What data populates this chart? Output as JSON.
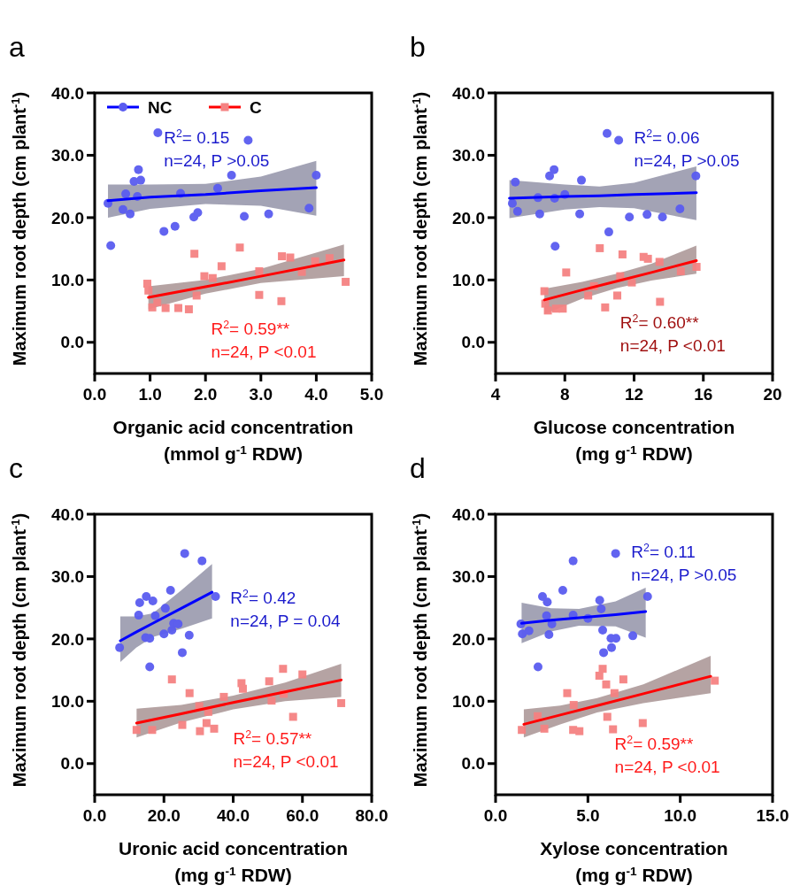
{
  "chart_data": [
    {
      "type": "scatter",
      "title": "a",
      "xlabel": "Organic acid concentration\n(mmol g$^{-1}$ RDW)",
      "ylabel": "Maximum root depth (cm plant$^{-1}$)",
      "xlim": [
        0,
        5
      ],
      "xticks": [
        {
          "value": 0,
          "label": "0.0"
        },
        {
          "value": 1,
          "label": "1.0"
        },
        {
          "value": 2,
          "label": "2.0"
        },
        {
          "value": 3,
          "label": "3.0"
        },
        {
          "value": 4,
          "label": "4.0"
        },
        {
          "value": 5,
          "label": "5.0"
        }
      ],
      "ylim": [
        -5,
        40
      ],
      "yticks": [
        {
          "value": 0,
          "label": "0.0"
        },
        {
          "value": 10,
          "label": "10.0"
        },
        {
          "value": 20,
          "label": "20.0"
        },
        {
          "value": 30,
          "label": "30.0"
        },
        {
          "value": 40,
          "label": "40.0"
        }
      ],
      "legend": "top left",
      "annotations": [
        "R$^{2}$= 0.15",
        "n=24, P >0.05",
        "R$^{2}$= 0.59**",
        "n=24, P <0.01"
      ],
      "series": [
        {
          "name": "NC",
          "marker": "circle",
          "color": "#5a5cf0",
          "x": [
            0.24,
            0.29,
            0.56,
            0.51,
            0.64,
            0.71,
            0.79,
            0.83,
            0.77,
            1.14,
            1.25,
            1.45,
            1.55,
            1.79,
            1.86,
            2.22,
            2.47,
            2.7,
            2.77,
            3.14,
            3.87,
            4.0
          ],
          "values": [
            22.3,
            15.5,
            23.8,
            21.3,
            20.6,
            25.8,
            27.7,
            26.0,
            23.4,
            33.6,
            17.8,
            18.6,
            23.9,
            20.1,
            20.8,
            24.7,
            26.8,
            20.2,
            32.4,
            20.6,
            21.5,
            26.8
          ]
        },
        {
          "name": "C",
          "marker": "square",
          "color": "#f58282",
          "x": [
            0.95,
            0.97,
            1.04,
            1.13,
            1.28,
            1.51,
            1.7,
            1.8,
            1.84,
            1.98,
            2.13,
            2.29,
            2.62,
            2.97,
            2.97,
            3.37,
            3.38,
            3.53,
            3.74,
            3.98,
            4.24,
            4.53
          ],
          "values": [
            9.4,
            8.3,
            5.6,
            6.4,
            5.5,
            5.5,
            5.3,
            14.2,
            7.5,
            10.6,
            10.3,
            12.2,
            15.2,
            11.4,
            7.6,
            6.6,
            13.8,
            13.6,
            11.3,
            13.0,
            13.5,
            9.7
          ]
        },
        {
          "type": "line",
          "color": "#0000ff",
          "x": [
            0.24,
            1,
            2,
            3,
            4
          ],
          "values": [
            22.7,
            23.3,
            23.7,
            24.3,
            24.8
          ],
          "lower": [
            20.0,
            21.4,
            22.2,
            21.9,
            20.3
          ],
          "upper": [
            25.3,
            25.3,
            25.4,
            26.6,
            29.1
          ]
        },
        {
          "type": "line",
          "color": "#ff0000",
          "x": [
            0.97,
            2,
            3,
            4.5
          ],
          "values": [
            7.2,
            8.9,
            10.6,
            13.2
          ],
          "lower": [
            5.3,
            7.8,
            9.5,
            10.6
          ],
          "upper": [
            9.0,
            10.0,
            11.8,
            15.7
          ]
        }
      ]
    },
    {
      "type": "scatter",
      "title": "b",
      "xlabel": "Glucose concentration\n(mg g$^{-1}$ RDW)",
      "ylabel": "Maximum root depth (cm plant$^{-1}$)",
      "xlim": [
        4,
        20
      ],
      "xticks": [
        4,
        8,
        12,
        16,
        20
      ],
      "ylim": [
        -5,
        40
      ],
      "yticks": [
        {
          "value": 0,
          "label": "0.0"
        },
        {
          "value": 10,
          "label": "10.0"
        },
        {
          "value": 20,
          "label": "20.0"
        },
        {
          "value": 30,
          "label": "30.0"
        },
        {
          "value": 40,
          "label": "40.0"
        }
      ],
      "annotations": [
        "R$^{2}$= 0.06",
        "n=24, P >0.05",
        "R$^{2}$= 0.60**",
        "n=24, P <0.01"
      ],
      "series": [
        {
          "marker": "circle",
          "color": "#5a5cf0",
          "x": [
            4.97,
            5.14,
            5.27,
            6.45,
            6.55,
            7.12,
            7.38,
            7.44,
            7.41,
            8.0,
            8.86,
            8.96,
            10.44,
            10.54,
            11.11,
            11.73,
            12.75,
            13.64,
            14.65,
            15.57
          ],
          "values": [
            22.3,
            25.7,
            21.0,
            23.2,
            20.6,
            26.7,
            27.7,
            15.4,
            23.1,
            23.7,
            20.6,
            26.0,
            33.5,
            17.7,
            32.4,
            20.1,
            20.5,
            20.1,
            21.4,
            26.7
          ]
        },
        {
          "marker": "square",
          "color": "#f58282",
          "x": [
            6.82,
            6.87,
            7.02,
            7.49,
            7.88,
            8.08,
            9.35,
            9.68,
            10.02,
            10.33,
            11.03,
            11.2,
            11.33,
            11.87,
            12.55,
            12.8,
            13.47,
            13.5,
            14.7,
            15.61
          ],
          "values": [
            8.2,
            6.2,
            5.1,
            5.4,
            5.4,
            11.2,
            7.5,
            9.0,
            15.1,
            5.6,
            7.5,
            10.6,
            14.1,
            9.6,
            13.7,
            13.4,
            12.9,
            6.5,
            11.4,
            12.1
          ]
        },
        {
          "type": "line",
          "color": "#0000ff",
          "x": [
            4.8,
            8,
            10,
            12,
            15.6
          ],
          "values": [
            23.1,
            23.4,
            23.5,
            23.7,
            24.0
          ],
          "lower": [
            19.9,
            21.3,
            21.7,
            21.5,
            19.6
          ],
          "upper": [
            26.0,
            25.3,
            25.0,
            25.6,
            28.2
          ]
        },
        {
          "type": "line",
          "color": "#ff0000",
          "x": [
            6.82,
            9,
            11,
            13,
            15.6
          ],
          "values": [
            6.8,
            8.4,
            9.8,
            11.2,
            13.1
          ],
          "lower": [
            4.5,
            7.0,
            8.7,
            9.9,
            11.0
          ],
          "upper": [
            8.6,
            9.7,
            11.0,
            12.6,
            15.5
          ]
        }
      ]
    },
    {
      "type": "scatter",
      "title": "c",
      "xlabel": "Uronic acid concentration\n(mg g$^{-1}$ RDW)",
      "ylabel": "Maximum root depth (cm plant$^{-1}$)",
      "xlim": [
        0,
        80
      ],
      "xticks": [
        {
          "value": 0,
          "label": "0.0"
        },
        {
          "value": 20,
          "label": "20.0"
        },
        {
          "value": 40,
          "label": "40.0"
        },
        {
          "value": 60,
          "label": "60.0"
        },
        {
          "value": 80,
          "label": "80.0"
        }
      ],
      "ylim": [
        -5,
        40
      ],
      "yticks": [
        {
          "value": 0,
          "label": "0.0"
        },
        {
          "value": 10,
          "label": "10.0"
        },
        {
          "value": 20,
          "label": "20.0"
        },
        {
          "value": 30,
          "label": "30.0"
        },
        {
          "value": 40,
          "label": "40.0"
        }
      ],
      "annotations": [
        "R$^{2}$= 0.42",
        "n=24, P = 0.04",
        "R$^{2}$= 0.57**",
        "n=24, P <0.01"
      ],
      "series": [
        {
          "marker": "circle",
          "color": "#5a5cf0",
          "x": [
            7.2,
            12.7,
            13.0,
            14.9,
            16.8,
            17.5,
            14.7,
            15.9,
            15.9,
            20.4,
            20.0,
            21.9,
            22.3,
            22.8,
            24.1,
            25.3,
            26.0,
            27.3,
            31.0,
            34.9
          ],
          "values": [
            18.6,
            23.8,
            25.8,
            26.8,
            26.1,
            23.7,
            20.2,
            20.1,
            15.5,
            24.9,
            20.8,
            27.8,
            21.4,
            22.5,
            22.4,
            17.8,
            33.7,
            20.6,
            32.5,
            26.8
          ]
        },
        {
          "marker": "square",
          "color": "#f58282",
          "x": [
            12.1,
            16.6,
            22.3,
            25.3,
            27.4,
            30.2,
            32.3,
            30.4,
            32.8,
            34.5,
            37.3,
            42.4,
            42.8,
            50.4,
            51.1,
            54.4,
            54.6,
            57.3,
            60.0,
            71.2
          ],
          "values": [
            5.4,
            5.4,
            13.5,
            6.2,
            11.3,
            9.2,
            6.5,
            5.2,
            8.3,
            5.6,
            10.7,
            12.9,
            12.0,
            13.2,
            10.1,
            15.2,
            11.2,
            7.5,
            14.3,
            9.7
          ]
        },
        {
          "type": "line",
          "color": "#0000ff",
          "x": [
            7.4,
            12,
            16.8,
            25,
            33.9
          ],
          "values": [
            19.7,
            21.1,
            22.5,
            24.9,
            27.5
          ],
          "lower": [
            16.3,
            18.6,
            20.3,
            21.6,
            23.3
          ],
          "upper": [
            23.6,
            23.6,
            24.1,
            27.8,
            32.0
          ]
        },
        {
          "type": "line",
          "color": "#ff0000",
          "x": [
            12.1,
            25,
            40,
            55,
            71.2
          ],
          "values": [
            6.5,
            8.0,
            9.8,
            11.5,
            13.4
          ],
          "lower": [
            4.2,
            6.6,
            8.7,
            10.0,
            10.7
          ],
          "upper": [
            8.8,
            9.4,
            10.9,
            13.0,
            16.0
          ]
        }
      ]
    },
    {
      "type": "scatter",
      "title": "d",
      "xlabel": "Xylose concentration\n(mg g$^{-1}$ RDW)",
      "ylabel": "Maximum root depth (cm plant$^{-1}$)",
      "xlim": [
        0,
        15
      ],
      "xticks": [
        {
          "value": 0,
          "label": "0.0"
        },
        {
          "value": 5,
          "label": "5.0"
        },
        {
          "value": 10,
          "label": "10.0"
        },
        {
          "value": 15,
          "label": "15.0"
        }
      ],
      "ylim": [
        -5,
        40
      ],
      "yticks": [
        {
          "value": 0,
          "label": "0.0"
        },
        {
          "value": 10,
          "label": "10.0"
        },
        {
          "value": 20,
          "label": "20.0"
        },
        {
          "value": 30,
          "label": "30.0"
        },
        {
          "value": 40,
          "label": "40.0"
        }
      ],
      "annotations": [
        "R$^{2}$= 0.11",
        "n=24, P >0.05",
        "R$^{2}$= 0.59**",
        "n=24, P <0.01"
      ],
      "series": [
        {
          "marker": "circle",
          "color": "#5a5cf0",
          "x": [
            1.37,
            1.45,
            1.81,
            2.3,
            2.54,
            2.8,
            2.76,
            2.89,
            3.05,
            3.64,
            4.2,
            4.2,
            5.0,
            5.64,
            5.72,
            5.8,
            5.85,
            6.25,
            6.28,
            6.52,
            6.5,
            7.43,
            8.23
          ],
          "values": [
            22.4,
            20.8,
            21.3,
            15.5,
            26.8,
            25.9,
            23.7,
            20.7,
            22.4,
            27.8,
            32.5,
            23.8,
            23.3,
            26.2,
            24.8,
            21.4,
            17.8,
            20.1,
            18.6,
            20.1,
            33.7,
            20.5,
            26.8
          ]
        },
        {
          "marker": "square",
          "color": "#f58282",
          "x": [
            1.42,
            2.28,
            2.64,
            3.88,
            4.23,
            4.2,
            4.54,
            5.62,
            5.8,
            5.99,
            6.05,
            6.36,
            6.44,
            6.92,
            7.97,
            11.87
          ],
          "values": [
            5.4,
            7.6,
            5.6,
            11.3,
            9.4,
            5.4,
            5.2,
            14.1,
            15.2,
            12.7,
            7.5,
            5.5,
            11.3,
            13.5,
            6.5,
            13.3
          ]
        },
        {
          "type": "line",
          "color": "#0000ff",
          "x": [
            1.41,
            3,
            4.52,
            6.5,
            8.13
          ],
          "values": [
            22.5,
            23.0,
            23.4,
            23.9,
            24.4
          ],
          "lower": [
            19.3,
            21.2,
            22.1,
            22.0,
            20.2
          ],
          "upper": [
            25.8,
            24.9,
            24.8,
            26.0,
            28.2
          ]
        },
        {
          "type": "line",
          "color": "#ff0000",
          "x": [
            1.53,
            3.5,
            5.5,
            8,
            11.65
          ],
          "values": [
            6.3,
            7.8,
            9.3,
            11.2,
            14.0
          ],
          "lower": [
            4.2,
            6.3,
            8.2,
            9.7,
            11.3
          ],
          "upper": [
            8.7,
            9.3,
            10.5,
            12.7,
            17.3
          ]
        }
      ]
    }
  ]
}
